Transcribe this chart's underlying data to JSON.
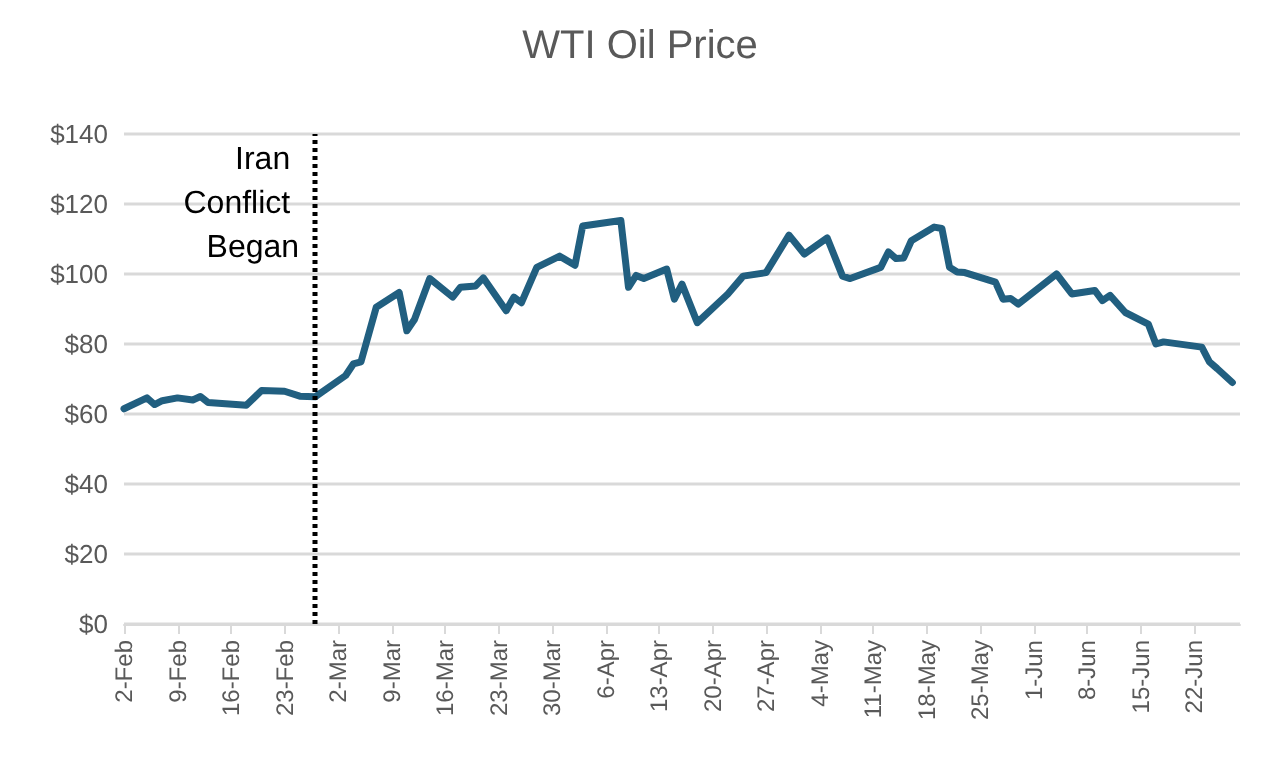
{
  "chart_data": {
    "type": "line",
    "title": "WTI Oil Price",
    "x": [
      "--02-02",
      "--02-05",
      "--02-06",
      "--02-07",
      "--02-09",
      "--02-11",
      "--02-12",
      "--02-13",
      "--02-18",
      "--02-20",
      "--02-23",
      "--02-25",
      "--02-27",
      "--03-03",
      "--03-04",
      "--03-05",
      "--03-07",
      "--03-10",
      "--03-11",
      "--03-12",
      "--03-14",
      "--03-17",
      "--03-18",
      "--03-20",
      "--03-21",
      "--03-24",
      "--03-25",
      "--03-26",
      "--03-28",
      "--03-31",
      "--04-02",
      "--04-03",
      "--04-08",
      "--04-09",
      "--04-10",
      "--04-11",
      "--04-14",
      "--04-15",
      "--04-16",
      "--04-18",
      "--04-22",
      "--04-24",
      "--04-27",
      "--04-30",
      "--05-02",
      "--05-05",
      "--05-07",
      "--05-08",
      "--05-12",
      "--05-13",
      "--05-14",
      "--05-15",
      "--05-16",
      "--05-19",
      "--05-20",
      "--05-21",
      "--05-22",
      "--05-23",
      "--05-27",
      "--05-28",
      "--05-29",
      "--05-30",
      "--06-04",
      "--06-06",
      "--06-09",
      "--06-10",
      "--06-11",
      "--06-13",
      "--06-16",
      "--06-17",
      "--06-18",
      "--06-23",
      "--06-24",
      "--06-25",
      "--06-27"
    ],
    "series": [
      {
        "color": "#215f80",
        "values": [
          61.5,
          64.6,
          62.7,
          63.8,
          64.6,
          64,
          65,
          63.3,
          62.5,
          66.7,
          66.5,
          65.1,
          64.9,
          71,
          74.3,
          74.9,
          90.5,
          94.7,
          83.8,
          87,
          98.7,
          93.4,
          96.2,
          96.6,
          98.9,
          89.5,
          93.4,
          91.8,
          101.9,
          105.1,
          102.5,
          113.7,
          115.3,
          96.2,
          99.6,
          98.7,
          101.4,
          92.8,
          97.1,
          86.1,
          94.3,
          99.4,
          100.4,
          111.1,
          105.7,
          110.3,
          99.4,
          98.7,
          101.9,
          106.3,
          104.4,
          104.6,
          109.5,
          113.4,
          113,
          101.9,
          100.6,
          100.4,
          97.7,
          92.8,
          93,
          91.4,
          100,
          94.3,
          95.3,
          92.4,
          93.9,
          89,
          85.7,
          80,
          80.6,
          79.1,
          74.9,
          73,
          69
        ]
      }
    ],
    "xlim": [
      "--02-02",
      "--06-28"
    ],
    "xticks": [
      {
        "value": "--02-02",
        "label": "2-Feb"
      },
      {
        "value": "--02-09",
        "label": "9-Feb"
      },
      {
        "value": "--02-16",
        "label": "16-Feb"
      },
      {
        "value": "--02-23",
        "label": "23-Feb"
      },
      {
        "value": "--03-02",
        "label": "2-Mar"
      },
      {
        "value": "--03-09",
        "label": "9-Mar"
      },
      {
        "value": "--03-16",
        "label": "16-Mar"
      },
      {
        "value": "--03-23",
        "label": "23-Mar"
      },
      {
        "value": "--03-30",
        "label": "30-Mar"
      },
      {
        "value": "--04-06",
        "label": "6-Apr"
      },
      {
        "value": "--04-13",
        "label": "13-Apr"
      },
      {
        "value": "--04-20",
        "label": "20-Apr"
      },
      {
        "value": "--04-27",
        "label": "27-Apr"
      },
      {
        "value": "--05-04",
        "label": "4-May"
      },
      {
        "value": "--05-11",
        "label": "11-May"
      },
      {
        "value": "--05-18",
        "label": "18-May"
      },
      {
        "value": "--05-25",
        "label": "25-May"
      },
      {
        "value": "--06-01",
        "label": "1-Jun"
      },
      {
        "value": "--06-08",
        "label": "8-Jun"
      },
      {
        "value": "--06-15",
        "label": "15-Jun"
      },
      {
        "value": "--06-22",
        "label": "22-Jun"
      }
    ],
    "ylim": [
      0,
      140
    ],
    "yticks": [
      {
        "value": 0,
        "label": "$0"
      },
      {
        "value": 20,
        "label": "$20"
      },
      {
        "value": 40,
        "label": "$40"
      },
      {
        "value": 60,
        "label": "$60"
      },
      {
        "value": 80,
        "label": "$80"
      },
      {
        "value": 100,
        "label": "$100"
      },
      {
        "value": 120,
        "label": "$120"
      },
      {
        "value": 140,
        "label": "$140"
      }
    ],
    "grid": "y",
    "marker": "none",
    "ref_lines": [
      {
        "axis": "x",
        "value": "--02-27",
        "label": "Iran Conflict Began",
        "color": "#000000",
        "line_style": "dotted"
      }
    ]
  }
}
